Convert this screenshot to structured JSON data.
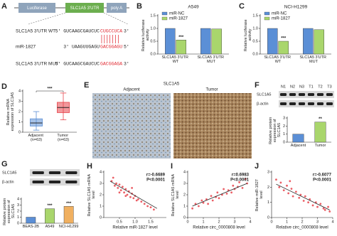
{
  "diagram": {
    "panel": "A",
    "construct": [
      "Luciferase",
      "SLC1A5 3'UTR",
      "poly A"
    ],
    "rows": [
      {
        "label": "SLC1A5 3'UTR WT",
        "seq": "5' GUCAAGCGAUCUC",
        "site": "CUGCCUCA",
        "end": "3'"
      },
      {
        "label": "miR-1827",
        "seq": "3' UAAGUUGAGU",
        "site": "GACGGAGU",
        "end": "5'"
      },
      {
        "label": "SLC1A5 3'UTR MUT",
        "seq": "5' GUCAAGCGAUCUC",
        "site": "GACGGAGA",
        "end": "3'"
      }
    ]
  },
  "image_panel": {
    "panel": "E",
    "title": "SLC1A5",
    "labels": [
      "Adjacent",
      "Tumor"
    ]
  },
  "chart_data": [
    {
      "panel": "B",
      "type": "bar",
      "title": "A549",
      "categories": [
        "SLC1A5 3'UTR WT",
        "SLC1A5 3'UTR MUT"
      ],
      "series": [
        {
          "name": "miR-NC",
          "color": "#5b8fd6",
          "values": [
            1.0,
            1.0
          ]
        },
        {
          "name": "miR-1827",
          "color": "#a9d66c",
          "values": [
            0.55,
            0.98
          ]
        }
      ],
      "ylabel": "Relative luciferase activity",
      "ylim": [
        0,
        1.5
      ],
      "yticks": [
        {
          "value": 0,
          "label": "0.0"
        },
        0.5,
        {
          "value": 1,
          "label": "1.0"
        },
        1.5
      ],
      "annotations": [
        {
          "text": "***",
          "category": "SLC1A5 3'UTR WT"
        }
      ]
    },
    {
      "panel": "C",
      "type": "bar",
      "title": "NCI-H1299",
      "categories": [
        "SLC1A5 3'UTR WT",
        "SLC1A5 3'UTR MUT"
      ],
      "series": [
        {
          "name": "miR-NC",
          "color": "#5b8fd6",
          "values": [
            1.0,
            1.0
          ]
        },
        {
          "name": "miR-1827",
          "color": "#a9d66c",
          "values": [
            0.5,
            0.95
          ]
        }
      ],
      "ylabel": "Relative luciferase activity",
      "ylim": [
        0,
        1.5
      ],
      "yticks": [
        {
          "value": 0,
          "label": "0.0"
        },
        0.5,
        {
          "value": 1,
          "label": "1.0"
        },
        1.5
      ],
      "annotations": [
        {
          "text": "***",
          "category": "SLC1A5 3'UTR WT"
        }
      ]
    },
    {
      "panel": "D",
      "type": "box",
      "categories": [
        "Adjacent (n=63)",
        "Tumor (n=63)"
      ],
      "colors": [
        "#5b8fd6",
        "#e8434b"
      ],
      "boxes": [
        {
          "min": 0.2,
          "q1": 0.6,
          "median": 0.9,
          "q3": 1.3,
          "max": 2.0
        },
        {
          "min": 1.2,
          "q1": 1.9,
          "median": 2.4,
          "q3": 2.9,
          "max": 3.8
        }
      ],
      "ylabel": "Relative mRNA expression of SLC1A5",
      "ylim": [
        0,
        4
      ],
      "yticks": [
        0,
        1,
        2,
        3,
        4
      ],
      "annotations": [
        {
          "text": "***",
          "category": "Tumor (n=63)"
        }
      ]
    },
    {
      "panel": "F",
      "type": "bar",
      "categories": [
        "Adjacent",
        "Tumor"
      ],
      "values": [
        1.0,
        2.5
      ],
      "colors": [
        "#5b8fd6",
        "#a9d66c"
      ],
      "blot": {
        "lanes": [
          "N1",
          "N2",
          "N3",
          "T1",
          "T2",
          "T3"
        ],
        "rows": [
          "SLC1A5",
          "β-actin"
        ]
      },
      "ylabel": "Relative protein expression of SLC1A5",
      "ylim": [
        0,
        3
      ],
      "yticks": [
        0,
        1,
        2,
        3
      ],
      "annotations": [
        {
          "text": "**",
          "category": "Tumor"
        }
      ]
    },
    {
      "panel": "G",
      "type": "bar",
      "categories": [
        "BEAS-2B",
        "A549",
        "NCI-H1299"
      ],
      "values": [
        1.0,
        2.4,
        2.8
      ],
      "colors": [
        "#5b8fd6",
        "#a9d66c",
        "#f0b060"
      ],
      "blot": {
        "rows": [
          "SLC1A5",
          "β-actin"
        ]
      },
      "ylabel": "Relative protein expression of SLC1A5",
      "ylim": [
        0,
        4
      ],
      "yticks": [
        0,
        1,
        2,
        3,
        4
      ],
      "annotations": [
        {
          "text": "***",
          "category": "A549"
        },
        {
          "text": "***",
          "category": "NCI-H1299"
        }
      ]
    },
    {
      "panel": "H",
      "type": "scatter",
      "color": "#e8434b",
      "x": [
        0.25,
        0.3,
        0.35,
        0.4,
        0.45,
        0.5,
        0.55,
        0.6,
        0.65,
        0.7,
        0.75,
        0.8,
        0.85,
        0.9,
        0.95,
        1.0,
        1.05,
        1.1,
        1.2,
        1.3,
        1.4,
        1.5,
        1.6,
        0.5,
        0.7,
        0.9
      ],
      "y": [
        3.2,
        3.5,
        2.8,
        3.0,
        2.6,
        2.9,
        2.4,
        2.7,
        2.2,
        2.5,
        2.0,
        2.3,
        1.8,
        2.1,
        1.7,
        1.9,
        1.5,
        1.6,
        1.4,
        1.2,
        1.0,
        0.9,
        0.7,
        2.2,
        1.9,
        2.6
      ],
      "fit": {
        "x": [
          0.2,
          1.7
        ],
        "y": [
          3.2,
          0.8
        ]
      },
      "stats": [
        "r=-0.6689",
        "P<0.0001"
      ],
      "xlabel": "Relative miR-1827 level",
      "ylabel": "Relative SLC1A5 mRNA level",
      "xlim": [
        0,
        2
      ],
      "xticks": [
        0.5,
        {
          "value": 1,
          "label": "1.0"
        },
        1.5
      ],
      "ylim": [
        0,
        4
      ],
      "yticks": [
        0,
        1,
        2,
        3,
        4
      ]
    },
    {
      "panel": "I",
      "type": "scatter",
      "color": "#e8434b",
      "x": [
        0.3,
        0.5,
        0.7,
        0.9,
        1.0,
        1.2,
        1.3,
        1.5,
        1.6,
        1.8,
        1.9,
        2.0,
        2.2,
        2.3,
        2.5,
        2.6,
        2.8,
        2.9,
        3.0,
        3.2,
        3.3,
        3.5,
        3.7,
        3.8
      ],
      "y": [
        0.8,
        1.2,
        1.0,
        1.5,
        1.3,
        1.6,
        1.2,
        1.9,
        1.5,
        1.8,
        2.2,
        1.7,
        2.0,
        2.5,
        2.1,
        2.4,
        2.2,
        2.8,
        2.5,
        2.7,
        3.1,
        2.6,
        3.4,
        3.0
      ],
      "fit": {
        "x": [
          0.3,
          3.8
        ],
        "y": [
          1.0,
          3.0
        ]
      },
      "stats": [
        "r=0.6983",
        "P<0.0001"
      ],
      "xlabel": "Relative circ_0000808 level",
      "ylabel": "Relative SLC1A5 mRNA level",
      "xlim": [
        0,
        4
      ],
      "xticks": [
        0,
        1,
        2,
        3,
        4
      ],
      "ylim": [
        0,
        4
      ],
      "yticks": [
        0,
        1,
        2,
        3,
        4
      ]
    },
    {
      "panel": "J",
      "type": "scatter",
      "color": "#e8434b",
      "x": [
        0.3,
        0.5,
        0.6,
        0.8,
        1.0,
        1.1,
        1.3,
        1.4,
        1.6,
        1.8,
        1.9,
        2.1,
        2.2,
        2.4,
        2.5,
        2.7,
        2.9,
        3.0,
        3.2,
        3.4,
        3.5,
        3.7,
        3.8,
        1.2
      ],
      "y": [
        2.5,
        2.0,
        2.3,
        1.8,
        2.1,
        1.6,
        1.9,
        1.4,
        1.7,
        1.3,
        1.5,
        1.1,
        1.4,
        1.0,
        1.2,
        0.8,
        1.0,
        0.7,
        0.9,
        0.6,
        0.5,
        0.7,
        0.4,
        2.4
      ],
      "fit": {
        "x": [
          0.3,
          3.8
        ],
        "y": [
          2.2,
          0.5
        ]
      },
      "stats": [
        "r=-0.6077",
        "P<0.0001"
      ],
      "xlabel": "Relative circ_0000808 level",
      "ylabel": "Relative miR-1827 level",
      "xlim": [
        0,
        4
      ],
      "xticks": [
        0,
        1,
        2,
        3,
        4
      ],
      "ylim": [
        0,
        3
      ],
      "yticks": [
        0,
        1,
        2,
        3
      ]
    }
  ]
}
